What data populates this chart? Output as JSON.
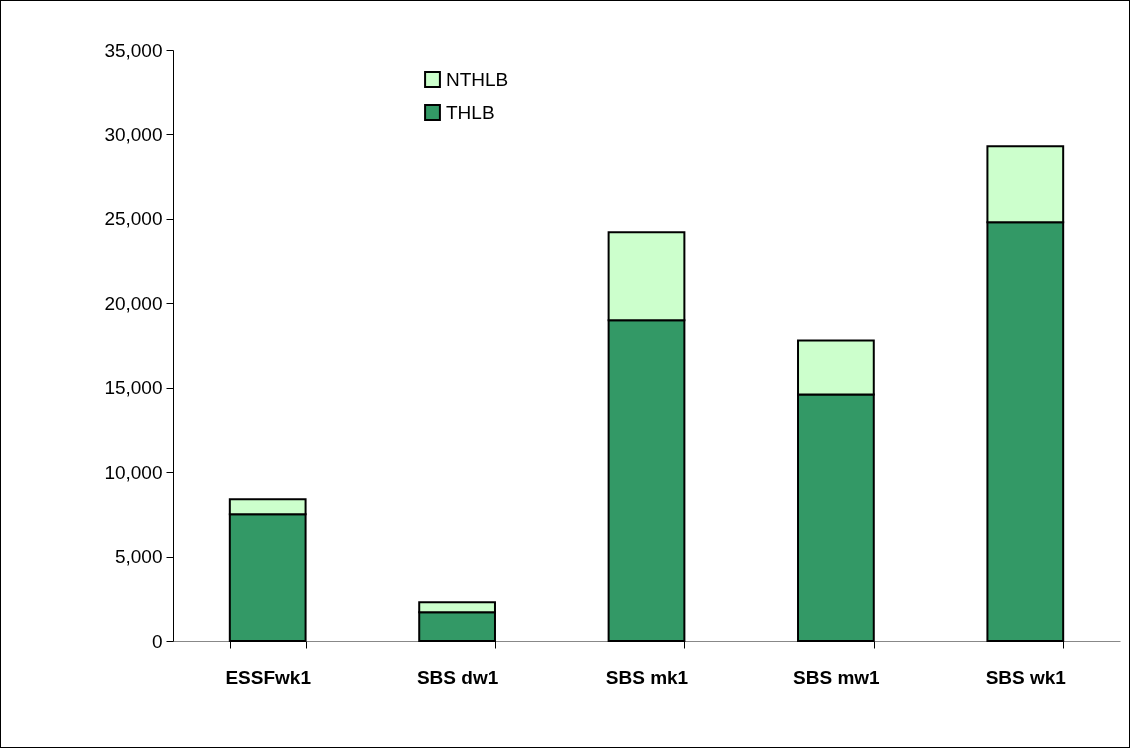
{
  "chart_data": {
    "type": "bar",
    "stacked": true,
    "categories": [
      "ESSFwk1",
      "SBS dw1",
      "SBS mk1",
      "SBS mw1",
      "SBS wk1"
    ],
    "series": [
      {
        "name": "THLB",
        "color": "#339966",
        "values": [
          7500,
          1700,
          19000,
          14600,
          24800
        ]
      },
      {
        "name": "NTHLB",
        "color": "#ccffcc",
        "values": [
          900,
          600,
          5200,
          3200,
          4500
        ]
      }
    ],
    "ylim": [
      0,
      35000
    ],
    "yticks": [
      {
        "value": 0,
        "label": "0"
      },
      {
        "value": 5000,
        "label": "5,000"
      },
      {
        "value": 10000,
        "label": "10,000"
      },
      {
        "value": 15000,
        "label": "15,000"
      },
      {
        "value": 20000,
        "label": "20,000"
      },
      {
        "value": 25000,
        "label": "25,000"
      },
      {
        "value": 30000,
        "label": "30,000"
      },
      {
        "value": 35000,
        "label": "35,000"
      }
    ],
    "grid": false,
    "legend": "top left"
  }
}
